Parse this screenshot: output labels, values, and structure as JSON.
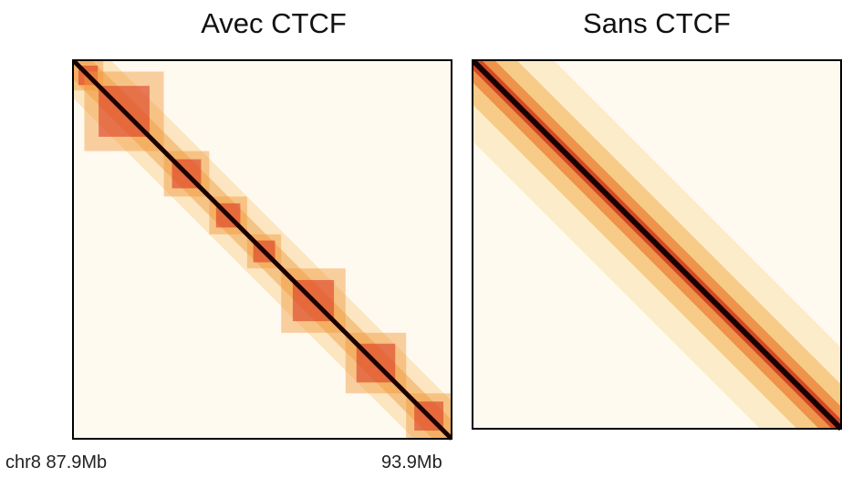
{
  "panels": [
    {
      "title": "Avec CTCF",
      "tads": [
        [
          0.0,
          0.08
        ],
        [
          0.03,
          0.24
        ],
        [
          0.24,
          0.36
        ],
        [
          0.36,
          0.46
        ],
        [
          0.46,
          0.55
        ],
        [
          0.55,
          0.72
        ],
        [
          0.72,
          0.88
        ],
        [
          0.88,
          1.0
        ]
      ]
    },
    {
      "title": "Sans CTCF",
      "tads": []
    }
  ],
  "axis": {
    "start_label": "chr8 87.9Mb",
    "end_label": "93.9Mb"
  },
  "colors": {
    "diagonal": "#1a0000",
    "tad": "#d9301a",
    "background": "#fffaf0",
    "frame": "#000000"
  },
  "chart_data": {
    "type": "heatmap",
    "chromosome": "chr8",
    "x_range_mb": [
      87.9,
      93.9
    ],
    "tick_labels": [
      "chr8 87.9Mb",
      "93.9Mb"
    ],
    "panels": [
      "Avec CTCF",
      "Sans CTCF"
    ]
  }
}
